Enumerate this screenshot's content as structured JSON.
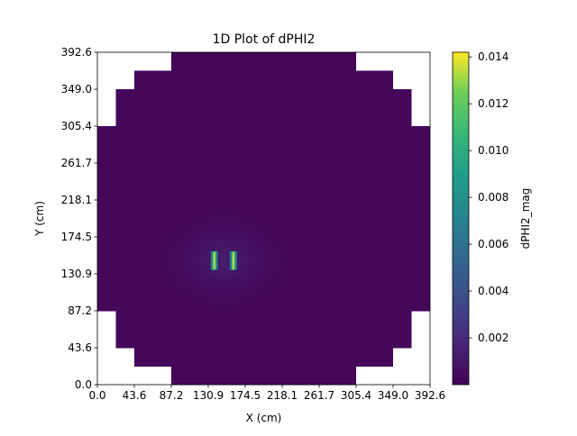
{
  "chart_data": {
    "type": "heatmap",
    "title": "1D Plot of dPHI2",
    "xlabel": "X (cm)",
    "ylabel": "Y (cm)",
    "xlim": [
      0.0,
      392.6
    ],
    "ylim": [
      0.0,
      392.6
    ],
    "xticks": [
      "0.0",
      "43.6",
      "87.2",
      "130.9",
      "174.5",
      "218.1",
      "261.7",
      "305.4",
      "349.0",
      "392.6"
    ],
    "yticks": [
      "0.0",
      "43.6",
      "87.2",
      "130.9",
      "174.5",
      "218.1",
      "261.7",
      "305.4",
      "349.0",
      "392.6"
    ],
    "colorbar": {
      "label": "dPHI2_mag",
      "colormap": "viridis",
      "min": 0.0,
      "max": 0.0142,
      "ticks": [
        "0.002",
        "0.004",
        "0.006",
        "0.008",
        "0.010",
        "0.012",
        "0.014"
      ],
      "tick_values": [
        0.002,
        0.004,
        0.006,
        0.008,
        0.01,
        0.012,
        0.014
      ]
    },
    "domain_rows": [
      {
        "y": [
          0.0,
          21.8
        ],
        "x": [
          87.2,
          305.4
        ]
      },
      {
        "y": [
          21.8,
          43.6
        ],
        "x": [
          43.6,
          349.0
        ]
      },
      {
        "y": [
          43.6,
          87.2
        ],
        "x": [
          21.8,
          370.8
        ]
      },
      {
        "y": [
          87.2,
          305.4
        ],
        "x": [
          0.0,
          392.6
        ]
      },
      {
        "y": [
          305.4,
          349.0
        ],
        "x": [
          21.8,
          370.8
        ]
      },
      {
        "y": [
          349.0,
          370.8
        ],
        "x": [
          43.6,
          349.0
        ]
      },
      {
        "y": [
          370.8,
          392.6
        ],
        "x": [
          87.2,
          305.4
        ]
      }
    ],
    "background_value": 0.0003,
    "peaks": [
      {
        "x": 138.0,
        "y": [
          135.5,
          157.5
        ],
        "value": 0.0135
      },
      {
        "x": 160.5,
        "y": [
          135.5,
          157.5
        ],
        "value": 0.0135
      }
    ]
  },
  "colors": {
    "viridis_low": "#440154",
    "viridis_mid": "#21918c",
    "viridis_high": "#fde725"
  }
}
